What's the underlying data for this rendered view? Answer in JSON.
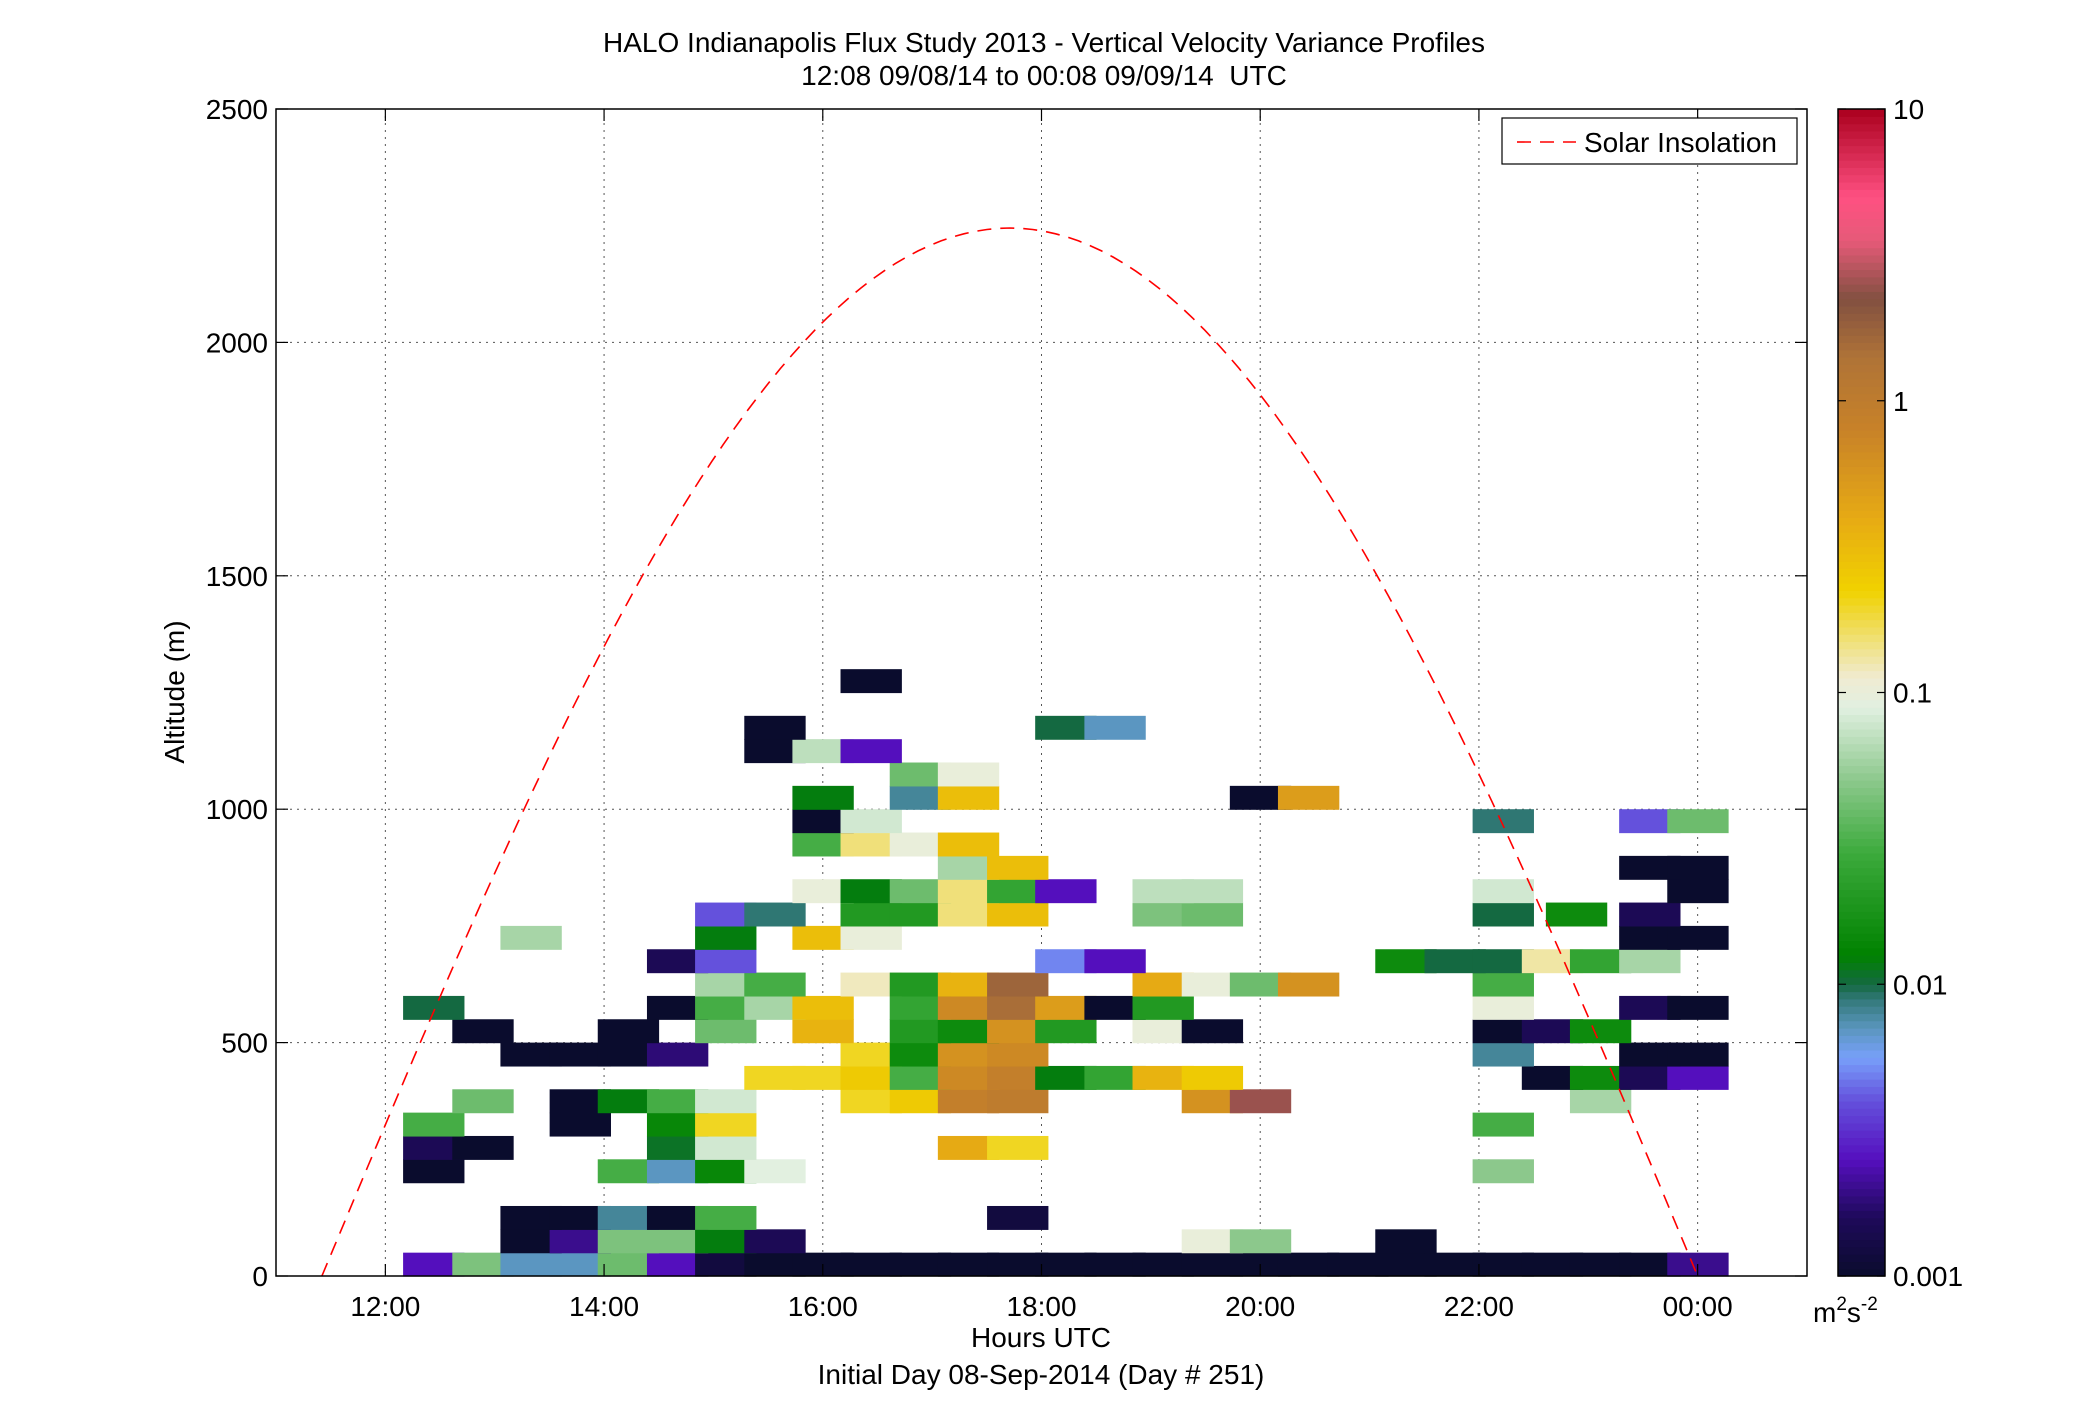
{
  "chart_data": {
    "type": "heatmap",
    "title": "HALO Indianapolis Flux Study 2013 - Vertical Velocity Variance Profiles",
    "subtitle": "12:08 09/08/14 to 00:08 09/09/14  UTC",
    "xlabel": "Hours UTC",
    "xlabel2": "Initial Day 08-Sep-2014 (Day # 251)",
    "ylabel": "Altitude (m)",
    "xlim": [
      11.0,
      25.0
    ],
    "ylim": [
      0,
      2500
    ],
    "x_ticks": [
      12,
      14,
      16,
      18,
      20,
      22,
      24
    ],
    "x_tick_labels": [
      "12:00",
      "14:00",
      "16:00",
      "18:00",
      "20:00",
      "22:00",
      "00:00"
    ],
    "y_ticks": [
      0,
      500,
      1000,
      1500,
      2000,
      2500
    ],
    "y_tick_labels": [
      "0",
      "500",
      "1000",
      "1500",
      "2000",
      "2500"
    ],
    "grid": true,
    "legend": {
      "label": "Solar Insolation",
      "position": "top-right",
      "color": "#ff0000",
      "style": "dashed"
    },
    "colorbar": {
      "scale": "log",
      "range": [
        0.001,
        10
      ],
      "tick_values": [
        0.001,
        0.01,
        0.1,
        1,
        10
      ],
      "tick_labels": [
        "0.001",
        "0.01",
        "0.1",
        "1",
        "10"
      ],
      "unit_base": "m",
      "unit_sup1": "2",
      "unit_mid": "s",
      "unit_sup2": "-2"
    },
    "bin_width_hours": 0.5556,
    "bin_height_m": 50,
    "cells": [
      [
        12.44,
        25,
        0.0025
      ],
      [
        12.89,
        25,
        0.045
      ],
      [
        13.33,
        25,
        0.007
      ],
      [
        13.78,
        25,
        0.007
      ],
      [
        14.22,
        25,
        0.04
      ],
      [
        14.67,
        25,
        0.0025
      ],
      [
        15.11,
        25,
        0.0012
      ],
      [
        15.56,
        25,
        0.001
      ],
      [
        16.0,
        25,
        0.001
      ],
      [
        16.44,
        25,
        0.001
      ],
      [
        16.89,
        25,
        0.001
      ],
      [
        17.33,
        25,
        0.001
      ],
      [
        17.78,
        25,
        0.001
      ],
      [
        18.22,
        25,
        0.001
      ],
      [
        18.67,
        25,
        0.001
      ],
      [
        19.11,
        25,
        0.001
      ],
      [
        19.56,
        25,
        0.001
      ],
      [
        20.0,
        25,
        0.001
      ],
      [
        20.44,
        25,
        0.001
      ],
      [
        20.89,
        25,
        0.001
      ],
      [
        21.33,
        25,
        0.001
      ],
      [
        21.78,
        25,
        0.001
      ],
      [
        22.22,
        25,
        0.001
      ],
      [
        22.67,
        25,
        0.001
      ],
      [
        23.11,
        25,
        0.001
      ],
      [
        23.56,
        25,
        0.001
      ],
      [
        24.0,
        25,
        0.002
      ],
      [
        13.33,
        75,
        0.001
      ],
      [
        13.78,
        75,
        0.002
      ],
      [
        14.22,
        75,
        0.045
      ],
      [
        14.67,
        75,
        0.045
      ],
      [
        15.11,
        75,
        0.012
      ],
      [
        15.56,
        75,
        0.0015
      ],
      [
        19.56,
        75,
        0.1
      ],
      [
        20.0,
        75,
        0.05
      ],
      [
        21.33,
        75,
        0.001
      ],
      [
        13.33,
        125,
        0.001
      ],
      [
        13.78,
        125,
        0.001
      ],
      [
        14.22,
        125,
        0.008
      ],
      [
        14.67,
        125,
        0.001
      ],
      [
        15.11,
        125,
        0.03
      ],
      [
        17.78,
        125,
        0.0012
      ],
      [
        12.44,
        225,
        0.001
      ],
      [
        14.22,
        225,
        0.03
      ],
      [
        14.67,
        225,
        0.007
      ],
      [
        15.11,
        225,
        0.014
      ],
      [
        15.56,
        225,
        0.09
      ],
      [
        22.22,
        225,
        0.05
      ],
      [
        12.44,
        275,
        0.0015
      ],
      [
        12.89,
        275,
        0.001
      ],
      [
        14.67,
        275,
        0.011
      ],
      [
        15.11,
        275,
        0.08
      ],
      [
        17.33,
        275,
        0.4
      ],
      [
        17.78,
        275,
        0.2
      ],
      [
        12.44,
        325,
        0.03
      ],
      [
        13.78,
        325,
        0.001
      ],
      [
        14.67,
        325,
        0.014
      ],
      [
        15.11,
        325,
        0.2
      ],
      [
        22.22,
        325,
        0.03
      ],
      [
        12.89,
        375,
        0.04
      ],
      [
        13.78,
        375,
        0.001
      ],
      [
        14.22,
        375,
        0.012
      ],
      [
        14.67,
        375,
        0.03
      ],
      [
        15.11,
        375,
        0.08
      ],
      [
        16.44,
        375,
        0.2
      ],
      [
        16.89,
        375,
        0.25
      ],
      [
        17.33,
        375,
        0.9
      ],
      [
        17.78,
        375,
        1.0
      ],
      [
        19.56,
        375,
        0.6
      ],
      [
        20.0,
        375,
        2.5
      ],
      [
        23.11,
        375,
        0.06
      ],
      [
        15.56,
        425,
        0.2
      ],
      [
        16.0,
        425,
        0.2
      ],
      [
        16.44,
        425,
        0.25
      ],
      [
        16.89,
        425,
        0.03
      ],
      [
        17.33,
        425,
        0.7
      ],
      [
        17.78,
        425,
        0.9
      ],
      [
        18.22,
        425,
        0.012
      ],
      [
        18.67,
        425,
        0.025
      ],
      [
        19.11,
        425,
        0.35
      ],
      [
        19.56,
        425,
        0.25
      ],
      [
        22.67,
        425,
        0.001
      ],
      [
        23.11,
        425,
        0.015
      ],
      [
        23.56,
        425,
        0.0015
      ],
      [
        24.0,
        425,
        0.0025
      ],
      [
        13.33,
        475,
        0.001
      ],
      [
        13.78,
        475,
        0.001
      ],
      [
        14.22,
        475,
        0.001
      ],
      [
        14.67,
        475,
        0.0018
      ],
      [
        16.44,
        475,
        0.2
      ],
      [
        16.89,
        475,
        0.015
      ],
      [
        17.33,
        475,
        0.6
      ],
      [
        17.78,
        475,
        0.7
      ],
      [
        22.22,
        475,
        0.008
      ],
      [
        23.56,
        475,
        0.001
      ],
      [
        24.0,
        475,
        0.001
      ],
      [
        12.89,
        525,
        0.001
      ],
      [
        14.22,
        525,
        0.001
      ],
      [
        15.11,
        525,
        0.04
      ],
      [
        16.0,
        525,
        0.35
      ],
      [
        16.89,
        525,
        0.02
      ],
      [
        17.33,
        525,
        0.015
      ],
      [
        17.78,
        525,
        0.6
      ],
      [
        18.22,
        525,
        0.02
      ],
      [
        19.11,
        525,
        0.1
      ],
      [
        19.56,
        525,
        0.001
      ],
      [
        22.22,
        525,
        0.001
      ],
      [
        22.67,
        525,
        0.0015
      ],
      [
        23.11,
        525,
        0.015
      ],
      [
        12.44,
        575,
        0.01
      ],
      [
        14.67,
        575,
        0.001
      ],
      [
        15.11,
        575,
        0.03
      ],
      [
        15.56,
        575,
        0.06
      ],
      [
        16.0,
        575,
        0.3
      ],
      [
        16.89,
        575,
        0.025
      ],
      [
        17.33,
        575,
        0.7
      ],
      [
        17.78,
        575,
        1.5
      ],
      [
        18.22,
        575,
        0.5
      ],
      [
        18.67,
        575,
        0.001
      ],
      [
        19.11,
        575,
        0.02
      ],
      [
        22.22,
        575,
        0.1
      ],
      [
        23.56,
        575,
        0.0015
      ],
      [
        24.0,
        575,
        0.001
      ],
      [
        15.11,
        625,
        0.06
      ],
      [
        15.56,
        625,
        0.03
      ],
      [
        16.44,
        625,
        0.12
      ],
      [
        16.89,
        625,
        0.02
      ],
      [
        17.33,
        625,
        0.35
      ],
      [
        17.78,
        625,
        1.7
      ],
      [
        19.11,
        625,
        0.4
      ],
      [
        19.56,
        625,
        0.1
      ],
      [
        20.0,
        625,
        0.04
      ],
      [
        20.44,
        625,
        0.6
      ],
      [
        22.22,
        625,
        0.03
      ],
      [
        14.67,
        675,
        0.0015
      ],
      [
        15.11,
        675,
        0.004
      ],
      [
        18.22,
        675,
        0.005
      ],
      [
        18.67,
        675,
        0.0025
      ],
      [
        21.33,
        675,
        0.015
      ],
      [
        21.78,
        675,
        0.01
      ],
      [
        22.22,
        675,
        0.01
      ],
      [
        22.67,
        675,
        0.13
      ],
      [
        23.11,
        675,
        0.025
      ],
      [
        23.56,
        675,
        0.06
      ],
      [
        13.33,
        725,
        0.06
      ],
      [
        15.11,
        725,
        0.012
      ],
      [
        16.0,
        725,
        0.3
      ],
      [
        16.44,
        725,
        0.1
      ],
      [
        23.56,
        725,
        0.001
      ],
      [
        24.0,
        725,
        0.001
      ],
      [
        15.11,
        775,
        0.004
      ],
      [
        15.56,
        775,
        0.009
      ],
      [
        16.44,
        775,
        0.02
      ],
      [
        16.89,
        775,
        0.02
      ],
      [
        17.33,
        775,
        0.15
      ],
      [
        17.78,
        775,
        0.3
      ],
      [
        19.11,
        775,
        0.045
      ],
      [
        19.56,
        775,
        0.04
      ],
      [
        22.22,
        775,
        0.01
      ],
      [
        22.89,
        775,
        0.015
      ],
      [
        23.56,
        775,
        0.0015
      ],
      [
        16.0,
        825,
        0.1
      ],
      [
        16.44,
        825,
        0.012
      ],
      [
        16.89,
        825,
        0.04
      ],
      [
        17.33,
        825,
        0.15
      ],
      [
        17.78,
        825,
        0.025
      ],
      [
        18.22,
        825,
        0.0025
      ],
      [
        19.11,
        825,
        0.07
      ],
      [
        19.56,
        825,
        0.07
      ],
      [
        22.22,
        825,
        0.08
      ],
      [
        24.0,
        825,
        0.001
      ],
      [
        17.33,
        875,
        0.06
      ],
      [
        17.78,
        875,
        0.3
      ],
      [
        23.56,
        875,
        0.001
      ],
      [
        24.0,
        875,
        0.001
      ],
      [
        16.0,
        925,
        0.03
      ],
      [
        16.44,
        925,
        0.15
      ],
      [
        16.89,
        925,
        0.1
      ],
      [
        17.33,
        925,
        0.3
      ],
      [
        16.0,
        975,
        0.001
      ],
      [
        16.44,
        975,
        0.08
      ],
      [
        22.22,
        975,
        0.009
      ],
      [
        23.56,
        975,
        0.004
      ],
      [
        24.0,
        975,
        0.04
      ],
      [
        16.0,
        1025,
        0.012
      ],
      [
        16.89,
        1025,
        0.008
      ],
      [
        17.33,
        1025,
        0.3
      ],
      [
        20.0,
        1025,
        0.001
      ],
      [
        20.44,
        1025,
        0.5
      ],
      [
        16.89,
        1075,
        0.04
      ],
      [
        17.33,
        1075,
        0.1
      ],
      [
        15.56,
        1125,
        0.001
      ],
      [
        16.0,
        1125,
        0.07
      ],
      [
        16.44,
        1125,
        0.0025
      ],
      [
        15.56,
        1175,
        0.001
      ],
      [
        18.22,
        1175,
        0.01
      ],
      [
        18.67,
        1175,
        0.007
      ],
      [
        16.44,
        1275,
        0.001
      ]
    ]
  }
}
